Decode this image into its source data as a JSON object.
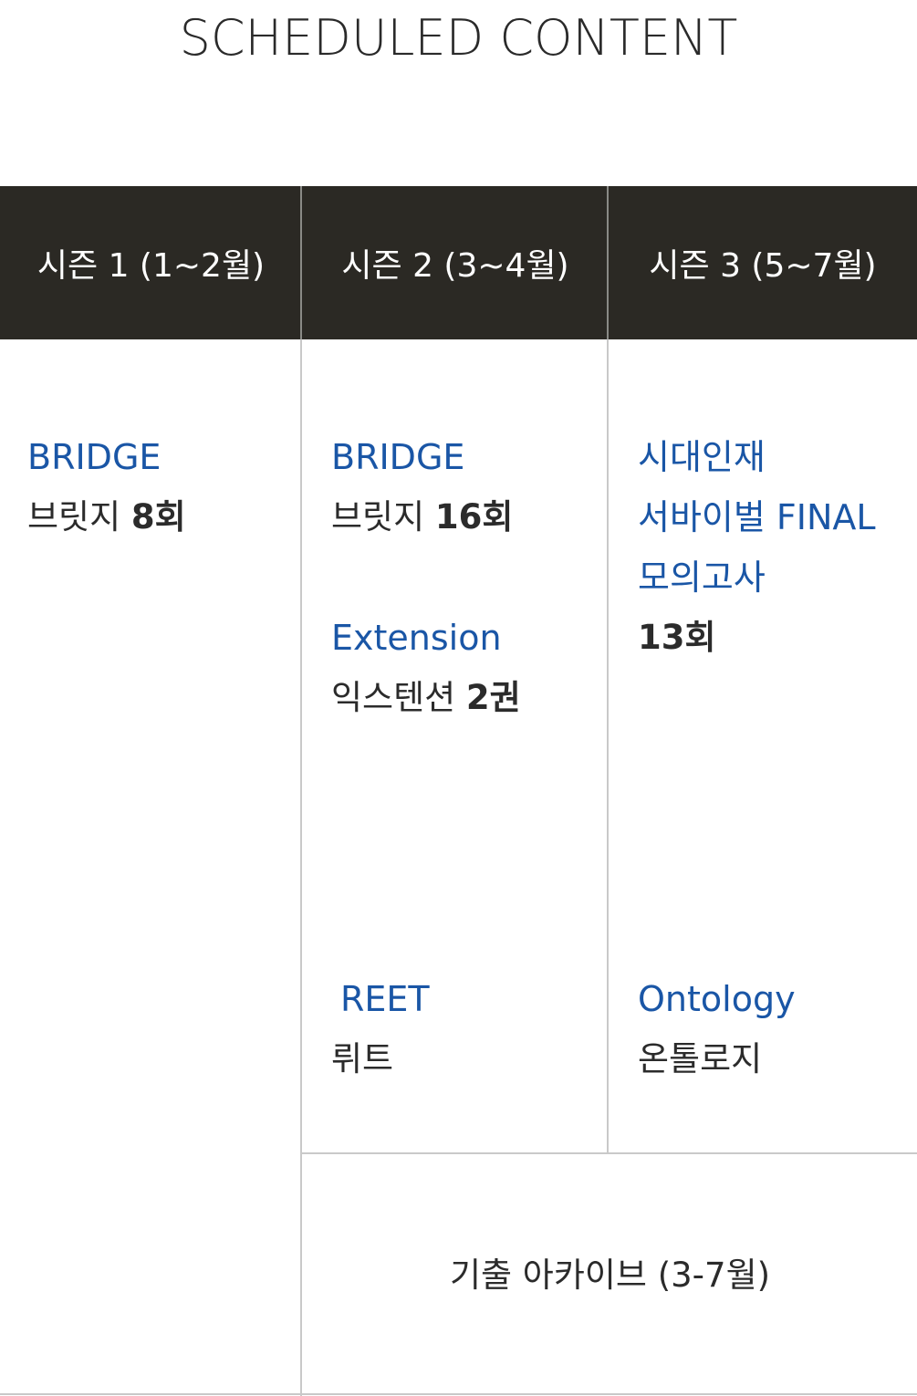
{
  "page_title": "SCHEDULED CONTENT",
  "seasons": [
    {
      "label": "시즌 1 (1~2월)"
    },
    {
      "label": "시즌 2 (3~4월)"
    },
    {
      "label": "시즌 3 (5~7월)"
    }
  ],
  "season1": {
    "bridge": {
      "title": "BRIDGE",
      "sub_text": "브릿지 ",
      "sub_bold": "8회"
    }
  },
  "season2": {
    "bridge": {
      "title": "BRIDGE",
      "sub_text": "브릿지 ",
      "sub_bold": "16회"
    },
    "extension": {
      "title": "Extension",
      "sub_text": "익스텐션 ",
      "sub_bold": "2권"
    },
    "reet": {
      "title": "REET",
      "sub_text": "뤼트"
    }
  },
  "season3": {
    "mock": {
      "title_line1": "시대인재",
      "title_line2": "서바이벌 FINAL",
      "title_line3": "모의고사",
      "sub_bold": "13회"
    },
    "ontology": {
      "title": "Ontology",
      "sub_text": "온톨로지"
    }
  },
  "archive": {
    "label": "기출 아카이브 (3-7월)"
  }
}
